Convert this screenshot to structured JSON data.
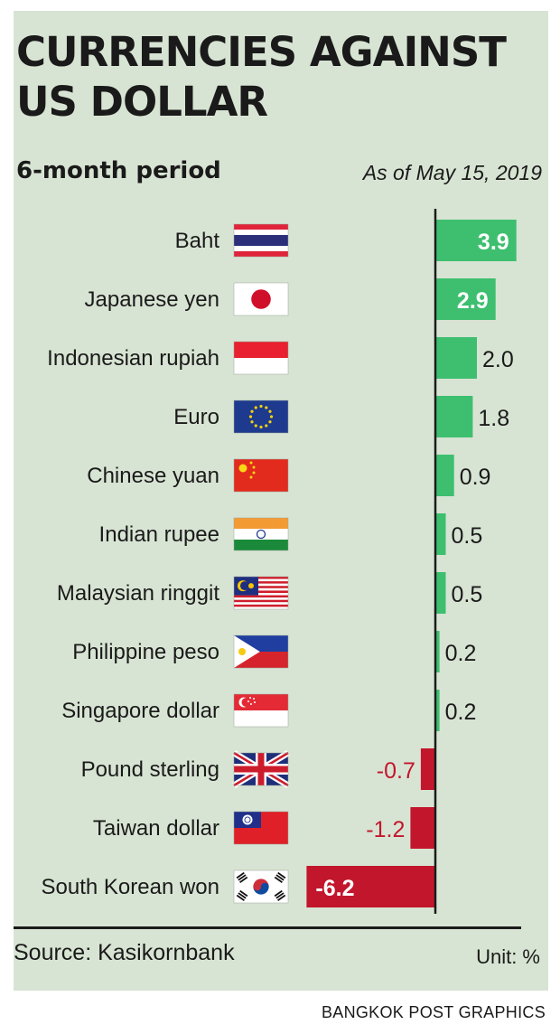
{
  "header": {
    "title_line1": "CURRENCIES AGAINST",
    "title_line2": "US DOLLAR",
    "subtitle": "6-month period",
    "as_of": "As of May 15, 2019"
  },
  "footer": {
    "source": "Source: Kasikornbank",
    "unit": "Unit: %",
    "credit": "BANGKOK POST GRAPHICS"
  },
  "colors": {
    "positive": "#3dbf6f",
    "negative": "#c2162c",
    "panel": "#d8e4d3"
  },
  "chart_data": {
    "type": "bar",
    "orientation": "horizontal",
    "categories": [
      "Baht",
      "Japanese yen",
      "Indonesian rupiah",
      "Euro",
      "Chinese yuan",
      "Indian rupee",
      "Malaysian ringgit",
      "Philippine peso",
      "Singapore dollar",
      "Pound sterling",
      "Taiwan dollar",
      "South Korean won"
    ],
    "values": [
      3.9,
      2.9,
      2.0,
      1.8,
      0.9,
      0.5,
      0.5,
      0.2,
      0.2,
      -0.7,
      -1.2,
      -6.2
    ],
    "value_labels": [
      "3.9",
      "2.9",
      "2.0",
      "1.8",
      "0.9",
      "0.5",
      "0.5",
      "0.2",
      "0.2",
      "-0.7",
      "-1.2",
      "-6.2"
    ],
    "flags": [
      "thailand-flag",
      "japan-flag",
      "indonesia-flag",
      "eu-flag",
      "china-flag",
      "india-flag",
      "malaysia-flag",
      "philippines-flag",
      "singapore-flag",
      "uk-flag",
      "taiwan-flag",
      "south-korea-flag"
    ],
    "xlim": [
      -6.2,
      3.9
    ],
    "grid": false,
    "legend": "none"
  }
}
